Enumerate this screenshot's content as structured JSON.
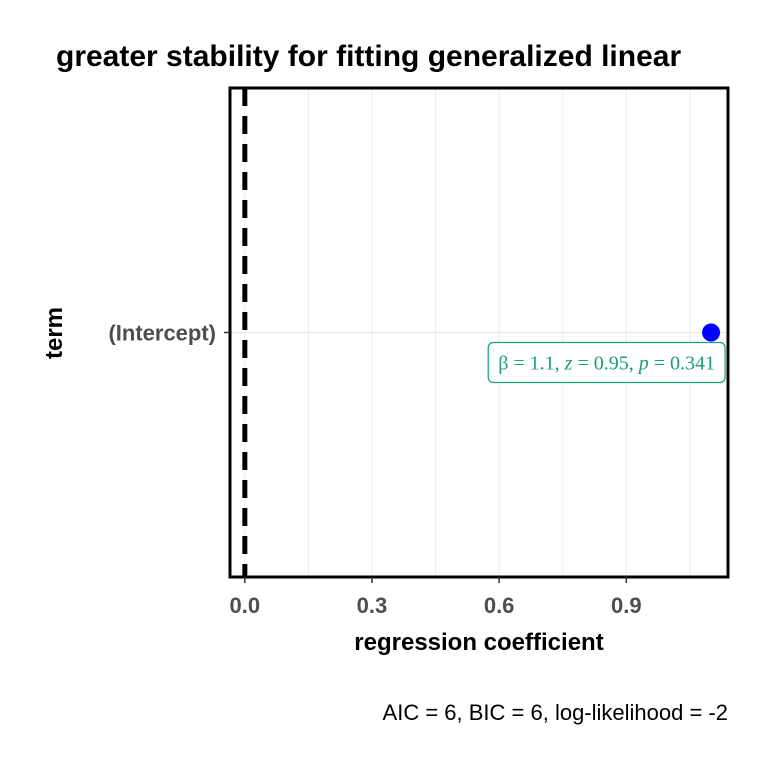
{
  "chart_data": {
    "type": "scatter",
    "title": "greater stability for fitting generalized linear",
    "xlabel": "regression coefficient",
    "ylabel": "term",
    "xlim": [
      -0.035,
      1.14
    ],
    "x_ticks": [
      0.0,
      0.3,
      0.6,
      0.9
    ],
    "x_tick_labels": [
      "0.0",
      "0.3",
      "0.6",
      "0.9"
    ],
    "categories": [
      "(Intercept)"
    ],
    "reference_line": {
      "x": 0,
      "style": "dashed",
      "color": "#000000"
    },
    "grid": true,
    "legend": "none",
    "points": [
      {
        "term": "(Intercept)",
        "estimate": 1.1,
        "color": "#0000ff",
        "label": {
          "beta_symbol": "β",
          "beta": "1.1",
          "z_symbol": "z",
          "z": "0.95",
          "p_symbol": "p",
          "p": "0.341",
          "color": "#1b9e77"
        }
      }
    ],
    "caption": "AIC = 6, BIC = 6, log-likelihood = -2"
  }
}
